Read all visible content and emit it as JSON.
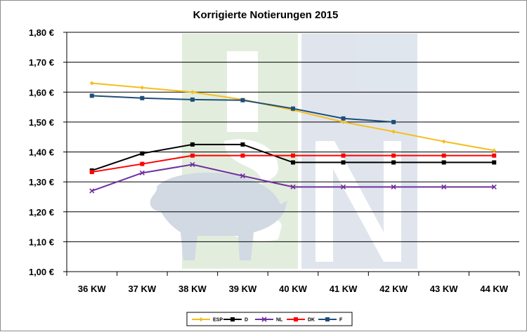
{
  "chart_data": {
    "type": "line",
    "title": "Korrigierte Notierungen 2015",
    "categories": [
      "36 KW",
      "37 KW",
      "38 KW",
      "39 KW",
      "40 KW",
      "41 KW",
      "42 KW",
      "43 KW",
      "44 KW"
    ],
    "ylim": [
      1.0,
      1.8
    ],
    "yticks": [
      "1,00 €",
      "1,10 €",
      "1,20 €",
      "1,30 €",
      "1,40 €",
      "1,50 €",
      "1,60 €",
      "1,70 €",
      "1,80 €"
    ],
    "grid": true,
    "legend": "bottom",
    "series": [
      {
        "name": "ESP",
        "color": "#f5be1e",
        "marker": "diamond",
        "values": [
          1.63,
          1.615,
          1.6,
          1.575,
          1.54,
          1.5,
          1.468,
          1.435,
          1.405
        ]
      },
      {
        "name": "D",
        "color": "#000000",
        "marker": "square",
        "values": [
          1.338,
          1.395,
          1.425,
          1.425,
          1.365,
          1.365,
          1.365,
          1.365,
          1.365
        ]
      },
      {
        "name": "NL",
        "color": "#7030a0",
        "marker": "x",
        "values": [
          1.27,
          1.33,
          1.358,
          1.32,
          1.283,
          1.283,
          1.283,
          1.283,
          1.283
        ]
      },
      {
        "name": "DK",
        "color": "#ff0000",
        "marker": "square",
        "values": [
          1.333,
          1.36,
          1.388,
          1.388,
          1.388,
          1.388,
          1.388,
          1.388,
          1.388
        ]
      },
      {
        "name": "F",
        "color": "#1f4e79",
        "marker": "square",
        "values": [
          1.588,
          1.58,
          1.575,
          1.573,
          1.545,
          1.512,
          1.5,
          null,
          null
        ]
      }
    ]
  }
}
